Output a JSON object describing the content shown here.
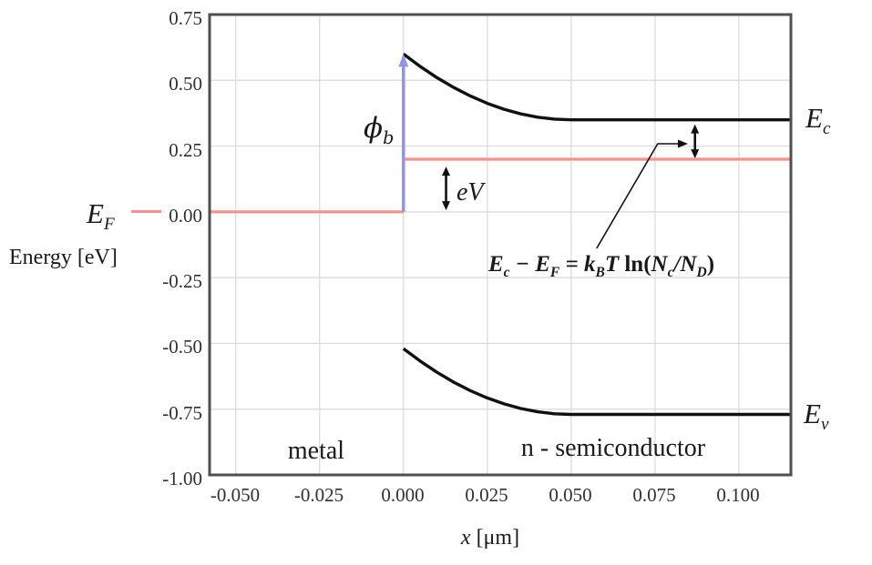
{
  "figure": {
    "y_axis_title": "Energy [eV]",
    "x_axis_title_var": "x",
    "x_axis_title_unit": " [μm]",
    "region_labels": {
      "metal": "metal",
      "semiconductor": "n - semiconductor"
    },
    "level_labels": {
      "ef": {
        "base": "E",
        "sub": "F"
      },
      "ec": {
        "base": "E",
        "sub": "c"
      },
      "ev": {
        "base": "E",
        "sub": "v"
      },
      "phi": {
        "base": "ϕ",
        "sub": "b"
      },
      "bias": "eV"
    },
    "formula": {
      "p1": "E",
      "s1": "c",
      "p2": " − ",
      "p3": "E",
      "s2": "F",
      "p4": " = ",
      "p5": "k",
      "s3": "B",
      "p6": "T",
      "p7": " ln(",
      "p8": "N",
      "s4": "c",
      "p9": "/",
      "p10": "N",
      "s5": "D",
      "p11": ")"
    }
  },
  "chart_data": {
    "type": "line",
    "title": "",
    "xlabel": "x [μm]",
    "ylabel": "Energy [eV]",
    "xlim": [
      -0.0578,
      0.1155
    ],
    "ylim": [
      -1.0,
      0.75
    ],
    "x_ticks": [
      -0.05,
      -0.025,
      0.0,
      0.025,
      0.05,
      0.075,
      0.1
    ],
    "x_tick_labels": [
      "-0.050",
      "-0.025",
      "0.000",
      "0.025",
      "0.050",
      "0.075",
      "0.100"
    ],
    "y_ticks": [
      0.75,
      0.5,
      0.25,
      0.0,
      -0.25,
      -0.5,
      -0.75,
      -1.0
    ],
    "y_tick_labels": [
      "0.75",
      "0.50",
      "0.25",
      "0.00",
      "-0.25",
      "-0.50",
      "-0.75",
      "-1.00"
    ],
    "grid": true,
    "legend": "none",
    "colors": {
      "band": "#111111",
      "fermi": "#f5918f",
      "barrier_arrow": "#9396e4",
      "grid": "#d9d9d9",
      "frame": "#4f4f4f"
    },
    "series": [
      {
        "name": "conduction-band-Ec",
        "color": "band",
        "width": 3.4,
        "points": [
          [
            0.0,
            0.6
          ],
          [
            0.005,
            0.5525
          ],
          [
            0.01,
            0.51
          ],
          [
            0.015,
            0.4725
          ],
          [
            0.02,
            0.44
          ],
          [
            0.025,
            0.4125
          ],
          [
            0.03,
            0.39
          ],
          [
            0.035,
            0.3725
          ],
          [
            0.04,
            0.36
          ],
          [
            0.045,
            0.3525
          ],
          [
            0.05,
            0.35
          ],
          [
            0.1155,
            0.35
          ]
        ]
      },
      {
        "name": "valence-band-Ev",
        "color": "band",
        "width": 3.4,
        "points": [
          [
            0.0,
            -0.52
          ],
          [
            0.005,
            -0.5675
          ],
          [
            0.01,
            -0.61
          ],
          [
            0.015,
            -0.6475
          ],
          [
            0.02,
            -0.68
          ],
          [
            0.025,
            -0.7075
          ],
          [
            0.03,
            -0.73
          ],
          [
            0.035,
            -0.7475
          ],
          [
            0.04,
            -0.76
          ],
          [
            0.045,
            -0.7675
          ],
          [
            0.05,
            -0.77
          ],
          [
            0.1155,
            -0.77
          ]
        ]
      },
      {
        "name": "fermi-level-metal",
        "color": "fermi",
        "width": 3.2,
        "points": [
          [
            -0.0578,
            0.0
          ],
          [
            0.0,
            0.0
          ]
        ]
      },
      {
        "name": "fermi-level-semiconductor",
        "color": "fermi",
        "width": 3.2,
        "points": [
          [
            0.0,
            0.2
          ],
          [
            0.1155,
            0.2
          ]
        ]
      }
    ],
    "shapes": [
      {
        "name": "phi-b-barrier-arrow",
        "type": "varrow",
        "x": 0.0,
        "y1": 0.0,
        "y2": 0.6,
        "heads": "end",
        "color": "barrier_arrow",
        "width": 3.6,
        "head_w": 5.5,
        "head_len": 14
      },
      {
        "name": "eV-double-arrow",
        "type": "varrow",
        "x": 0.0127,
        "y1": 0.006,
        "y2": 0.172,
        "heads": "both",
        "color": "band",
        "width": 2.6,
        "head_w": 4.5,
        "head_len": 10
      },
      {
        "name": "ec-ef-double-arrow",
        "type": "varrow",
        "x": 0.0869,
        "y1": 0.203,
        "y2": 0.333,
        "heads": "both",
        "color": "band",
        "width": 2.6,
        "head_w": 4.5,
        "head_len": 10
      },
      {
        "name": "annotation-leader",
        "type": "leader",
        "color": "band",
        "width": 1.6,
        "points": [
          [
            0.0576,
            -0.139
          ],
          [
            0.0758,
            0.259
          ],
          [
            0.0838,
            0.259
          ]
        ],
        "tip": [
          0.0848,
          0.259
        ],
        "head_w": 4.5,
        "head_len": 11
      }
    ],
    "key_values": {
      "phi_b_eV": 0.6,
      "applied_bias_eV": 0.2,
      "Ec_minus_EF_eV": 0.15,
      "band_gap_eV": 1.12,
      "depletion_width_um": 0.05
    }
  }
}
